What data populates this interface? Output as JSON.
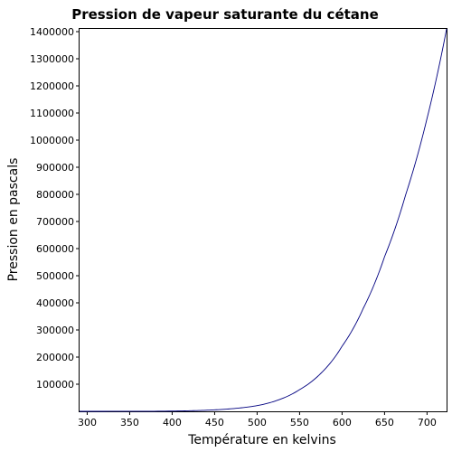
{
  "chart_data": {
    "type": "line",
    "title": "Pression de vapeur saturante du cétane",
    "xlabel": "Température en kelvins",
    "ylabel": "Pression en pascals",
    "xlim": [
      291,
      723
    ],
    "ylim": [
      0,
      1410000
    ],
    "xticks": [
      300,
      350,
      400,
      450,
      500,
      550,
      600,
      650,
      700
    ],
    "yticks": [
      100000,
      200000,
      300000,
      400000,
      500000,
      600000,
      700000,
      800000,
      900000,
      1000000,
      1100000,
      1200000,
      1300000,
      1400000
    ],
    "grid": false,
    "legend": "none",
    "series": [
      {
        "color": "#000080",
        "x": [
          291,
          350,
          400,
          425,
          450,
          475,
          500,
          525,
          550,
          575,
          600,
          625,
          650,
          675,
          700,
          723
        ],
        "y": [
          0,
          100,
          1000,
          2500,
          5500,
          11000,
          21000,
          42000,
          80000,
          140000,
          240000,
          380000,
          570000,
          800000,
          1080000,
          1410000
        ]
      }
    ]
  }
}
